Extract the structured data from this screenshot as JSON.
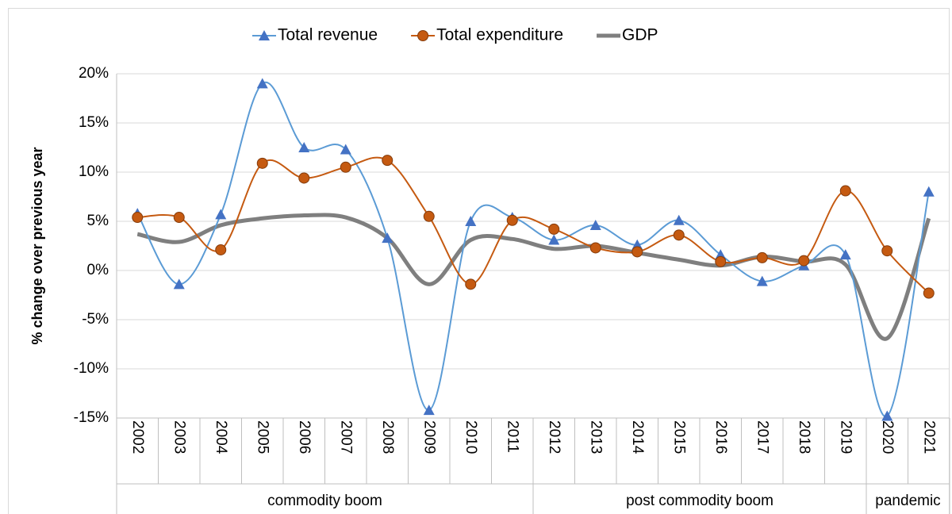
{
  "chart_data": {
    "type": "line",
    "y_label": "% change over previous year",
    "categories": [
      "2002",
      "2003",
      "2004",
      "2005",
      "2006",
      "2007",
      "2008",
      "2009",
      "2010",
      "2011",
      "2012",
      "2013",
      "2014",
      "2015",
      "2016",
      "2017",
      "2018",
      "2019",
      "2020",
      "2021"
    ],
    "groups": [
      {
        "label": "commodity boom",
        "from": "2002",
        "to": "2011"
      },
      {
        "label": "post commodity boom",
        "from": "2012",
        "to": "2019"
      },
      {
        "label": "pandemic",
        "from": "2020",
        "to": "2021"
      }
    ],
    "series": [
      {
        "name": "Total revenue",
        "color": "#5b9bd5",
        "marker": "triangle",
        "values": [
          5.8,
          -1.4,
          5.7,
          19.0,
          12.5,
          12.3,
          3.3,
          -14.2,
          5.0,
          5.4,
          3.1,
          4.6,
          2.6,
          5.1,
          1.6,
          -1.1,
          0.5,
          1.6,
          -14.8,
          8.0
        ]
      },
      {
        "name": "Total expenditure",
        "color": "#c55a11",
        "marker": "circle",
        "values": [
          5.4,
          5.4,
          2.1,
          10.9,
          9.4,
          10.5,
          11.2,
          5.5,
          -1.4,
          5.1,
          4.2,
          2.3,
          1.9,
          3.6,
          0.9,
          1.3,
          1.0,
          8.1,
          2.0,
          -2.3
        ]
      },
      {
        "name": "GDP",
        "color": "#7f7f7f",
        "marker": "none",
        "values": [
          3.7,
          2.9,
          4.6,
          5.3,
          5.6,
          5.4,
          3.3,
          -1.4,
          3.1,
          3.2,
          2.2,
          2.5,
          1.8,
          1.1,
          0.5,
          1.4,
          0.9,
          0.6,
          -6.9,
          5.3
        ]
      }
    ],
    "ylim": [
      -15,
      20
    ],
    "yticks": [
      {
        "value": -15,
        "label": "-15%"
      },
      {
        "value": -10,
        "label": "-10%"
      },
      {
        "value": -5,
        "label": "-5%"
      },
      {
        "value": 0,
        "label": "0%"
      },
      {
        "value": 5,
        "label": "5%"
      },
      {
        "value": 10,
        "label": "10%"
      },
      {
        "value": 15,
        "label": "15%"
      },
      {
        "value": 20,
        "label": "20%"
      }
    ],
    "grid": true,
    "smooth": true,
    "legend": "top"
  }
}
